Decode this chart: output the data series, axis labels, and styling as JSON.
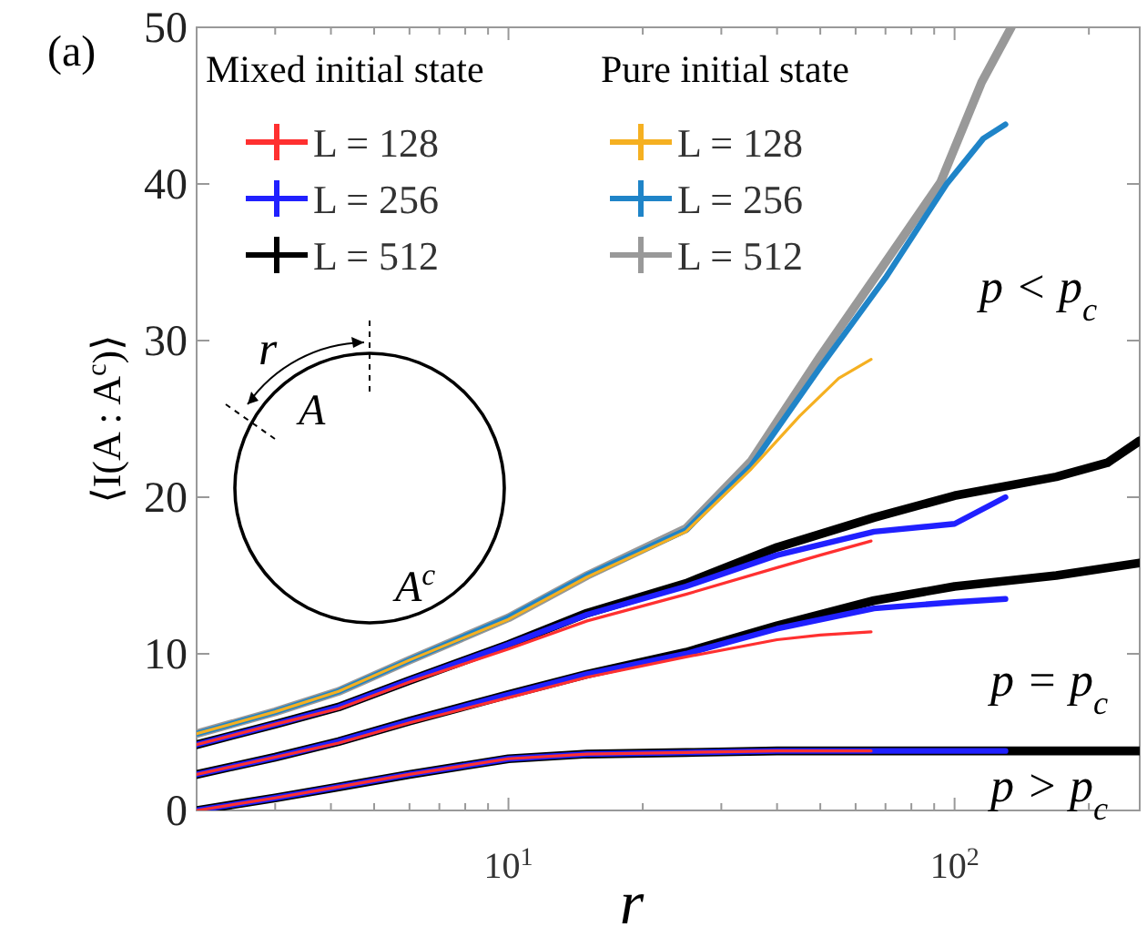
{
  "chart_data": {
    "type": "line",
    "xlabel": "r",
    "ylabel": "⟨I(A : A$^{c}$)⟩",
    "log": "x",
    "xlim": [
      2,
      260
    ],
    "ylim": [
      0,
      50
    ],
    "xticks": [
      {
        "value": 2,
        "label": null
      },
      {
        "value": 3,
        "label": null
      },
      {
        "value": 4,
        "label": null
      },
      {
        "value": 5,
        "label": null
      },
      {
        "value": 6,
        "label": null
      },
      {
        "value": 7,
        "label": null
      },
      {
        "value": 8,
        "label": null
      },
      {
        "value": 9,
        "label": null
      },
      {
        "value": 10,
        "label": "10$^{1}$"
      },
      {
        "value": 20,
        "label": null
      },
      {
        "value": 30,
        "label": null
      },
      {
        "value": 40,
        "label": null
      },
      {
        "value": 50,
        "label": null
      },
      {
        "value": 60,
        "label": null
      },
      {
        "value": 70,
        "label": null
      },
      {
        "value": 80,
        "label": null
      },
      {
        "value": 90,
        "label": null
      },
      {
        "value": 100,
        "label": "10$^{2}$"
      },
      {
        "value": 200,
        "label": null
      }
    ],
    "yticks": [
      0,
      10,
      20,
      30,
      40,
      50
    ],
    "grid": false,
    "legend": "top left",
    "marker": "none",
    "line_style": "solid",
    "series": [
      {
        "name": "L = 128",
        "color": "#ff3030",
        "x": [
          2,
          3,
          4.16,
          6,
          10,
          15,
          25,
          40,
          50,
          65
        ],
        "values": [
          4.2,
          5.5,
          6.5,
          8.2,
          10.3,
          12.1,
          13.8,
          15.5,
          16.3,
          17.2
        ]
      },
      {
        "name": "L = 256",
        "color": "#2020ff",
        "x": [
          2,
          3,
          4.16,
          6,
          10,
          15,
          25,
          40,
          66,
          100,
          130
        ],
        "values": [
          4.2,
          5.5,
          6.6,
          8.3,
          10.6,
          12.5,
          14.3,
          16.3,
          17.8,
          18.3,
          20.0
        ]
      },
      {
        "name": "L = 512",
        "color": "#000000",
        "x": [
          2,
          3,
          4.16,
          6,
          10,
          15,
          25,
          40,
          66,
          100,
          169,
          220,
          260
        ],
        "values": [
          4.2,
          5.5,
          6.6,
          8.3,
          10.6,
          12.6,
          14.5,
          16.8,
          18.7,
          20.1,
          21.3,
          22.2,
          23.6
        ]
      },
      {
        "name": "L = 128",
        "color": "#f5b021",
        "x": [
          2,
          3,
          4.16,
          6,
          10,
          15,
          25,
          35,
          45,
          55,
          65
        ],
        "values": [
          4.9,
          6.3,
          7.6,
          9.6,
          12.2,
          14.9,
          17.8,
          21.8,
          25.2,
          27.6,
          28.8
        ]
      },
      {
        "name": "L = 256",
        "color": "#1f84c8",
        "x": [
          2,
          3,
          4.16,
          6,
          10,
          15,
          25,
          35,
          50,
          70,
          96,
          116,
          130
        ],
        "values": [
          4.9,
          6.3,
          7.6,
          9.6,
          12.3,
          15.0,
          17.9,
          22.0,
          28.3,
          34.0,
          40.0,
          42.9,
          43.8
        ]
      },
      {
        "name": "L = 512",
        "color": "#999999",
        "x": [
          2,
          3,
          4.16,
          6,
          10,
          15,
          25,
          35,
          50,
          70,
          93,
          115,
          134
        ],
        "values": [
          4.9,
          6.3,
          7.6,
          9.6,
          12.3,
          15.0,
          18.0,
          22.3,
          29.0,
          35.0,
          40.1,
          46.5,
          50
        ]
      },
      {
        "color": "#ff3030",
        "x": [
          2,
          3,
          4.16,
          6,
          10,
          15,
          25,
          40,
          50,
          65
        ],
        "values": [
          2.3,
          3.4,
          4.3,
          5.6,
          7.2,
          8.5,
          9.8,
          10.9,
          11.2,
          11.4
        ]
      },
      {
        "color": "#2020ff",
        "x": [
          2,
          3,
          4.16,
          6,
          10,
          15,
          25,
          40,
          66,
          100,
          130
        ],
        "values": [
          2.3,
          3.4,
          4.4,
          5.7,
          7.4,
          8.7,
          10.0,
          11.6,
          12.9,
          13.3,
          13.5
        ]
      },
      {
        "color": "#000000",
        "x": [
          2,
          3,
          4.16,
          6,
          10,
          15,
          25,
          40,
          66,
          100,
          169,
          260
        ],
        "values": [
          2.3,
          3.4,
          4.4,
          5.7,
          7.4,
          8.7,
          10.1,
          11.8,
          13.4,
          14.3,
          15.0,
          15.8
        ]
      },
      {
        "color": "#ff3030",
        "x": [
          2,
          3,
          4.16,
          6,
          10,
          15,
          25,
          40,
          65
        ],
        "values": [
          0,
          0.8,
          1.5,
          2.3,
          3.3,
          3.6,
          3.7,
          3.8,
          3.8
        ]
      },
      {
        "color": "#2020ff",
        "x": [
          2,
          3,
          4.16,
          6,
          10,
          15,
          25,
          40,
          66,
          100,
          130
        ],
        "values": [
          0,
          0.8,
          1.5,
          2.3,
          3.3,
          3.6,
          3.7,
          3.8,
          3.8,
          3.8,
          3.8
        ]
      },
      {
        "color": "#000000",
        "x": [
          2,
          3,
          4.16,
          6,
          10,
          15,
          25,
          40,
          66,
          100,
          169,
          260
        ],
        "values": [
          0,
          0.8,
          1.5,
          2.3,
          3.3,
          3.6,
          3.7,
          3.8,
          3.8,
          3.8,
          3.8,
          3.8
        ]
      }
    ],
    "annotations": [
      "(a)",
      "Mixed initial state",
      "Pure initial state",
      "r",
      "A",
      "A$^{c}$",
      "p < p$_{c}$",
      "p = p$_{c}$",
      "p > p$_{c}$"
    ]
  }
}
